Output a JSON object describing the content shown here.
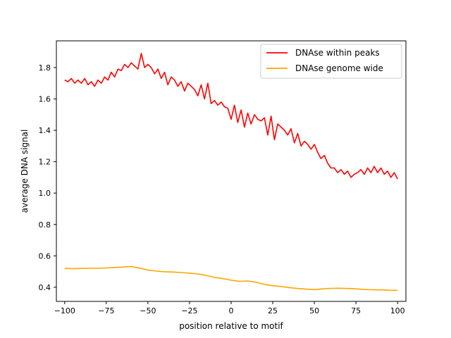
{
  "chart_data": {
    "type": "line",
    "xlabel": "position relative to motif",
    "ylabel": "average DNA signal",
    "xlim": [
      -105,
      105
    ],
    "ylim": [
      0.31,
      1.97
    ],
    "xticks": [
      -100,
      -75,
      -50,
      -25,
      0,
      25,
      50,
      75,
      100
    ],
    "xtick_labels": [
      "−100",
      "−75",
      "−50",
      "−25",
      "0",
      "25",
      "50",
      "75",
      "100"
    ],
    "yticks": [
      0.4,
      0.6,
      0.8,
      1.0,
      1.2,
      1.4,
      1.6,
      1.8
    ],
    "ytick_labels": [
      "0.4",
      "0.6",
      "0.8",
      "1.0",
      "1.2",
      "1.4",
      "1.6",
      "1.8"
    ],
    "legend_position": "top-right",
    "grid": false,
    "series": [
      {
        "name": "DNAse within peaks",
        "color": "#ff0000",
        "x": [
          -100,
          -98,
          -96,
          -94,
          -92,
          -90,
          -88,
          -86,
          -84,
          -82,
          -80,
          -78,
          -76,
          -74,
          -72,
          -70,
          -68,
          -66,
          -64,
          -62,
          -60,
          -58,
          -56,
          -54,
          -52,
          -50,
          -48,
          -46,
          -44,
          -42,
          -40,
          -38,
          -36,
          -34,
          -32,
          -30,
          -28,
          -26,
          -24,
          -22,
          -20,
          -18,
          -16,
          -14,
          -12,
          -10,
          -8,
          -6,
          -4,
          -2,
          0,
          2,
          4,
          6,
          8,
          10,
          12,
          14,
          16,
          18,
          20,
          22,
          24,
          26,
          28,
          30,
          32,
          34,
          36,
          38,
          40,
          42,
          44,
          46,
          48,
          50,
          52,
          54,
          56,
          58,
          60,
          62,
          64,
          66,
          68,
          70,
          72,
          74,
          76,
          78,
          80,
          82,
          84,
          86,
          88,
          90,
          92,
          94,
          96,
          98,
          100
        ],
        "y": [
          1.72,
          1.71,
          1.73,
          1.7,
          1.72,
          1.7,
          1.73,
          1.69,
          1.71,
          1.68,
          1.72,
          1.7,
          1.74,
          1.72,
          1.77,
          1.74,
          1.79,
          1.78,
          1.82,
          1.8,
          1.83,
          1.81,
          1.79,
          1.89,
          1.8,
          1.82,
          1.8,
          1.76,
          1.79,
          1.73,
          1.77,
          1.69,
          1.74,
          1.72,
          1.68,
          1.71,
          1.65,
          1.7,
          1.68,
          1.66,
          1.62,
          1.69,
          1.6,
          1.7,
          1.57,
          1.59,
          1.56,
          1.58,
          1.55,
          1.54,
          1.47,
          1.56,
          1.45,
          1.53,
          1.42,
          1.51,
          1.44,
          1.5,
          1.47,
          1.46,
          1.48,
          1.37,
          1.49,
          1.34,
          1.44,
          1.42,
          1.4,
          1.37,
          1.41,
          1.32,
          1.38,
          1.3,
          1.33,
          1.31,
          1.28,
          1.31,
          1.26,
          1.22,
          1.24,
          1.19,
          1.16,
          1.16,
          1.13,
          1.15,
          1.12,
          1.14,
          1.1,
          1.12,
          1.13,
          1.15,
          1.12,
          1.16,
          1.13,
          1.17,
          1.13,
          1.16,
          1.12,
          1.14,
          1.1,
          1.13,
          1.09
        ],
        "_note": "values read from the plot; noisy red line"
      },
      {
        "name": "DNAse genome wide",
        "color": "#ffa500",
        "x": [
          -100,
          -95,
          -90,
          -85,
          -80,
          -75,
          -70,
          -65,
          -60,
          -55,
          -50,
          -45,
          -40,
          -35,
          -30,
          -25,
          -20,
          -15,
          -10,
          -5,
          0,
          5,
          10,
          15,
          20,
          25,
          30,
          35,
          40,
          45,
          50,
          55,
          60,
          65,
          70,
          75,
          80,
          85,
          90,
          95,
          100
        ],
        "y": [
          0.52,
          0.518,
          0.52,
          0.521,
          0.521,
          0.523,
          0.526,
          0.529,
          0.532,
          0.522,
          0.51,
          0.503,
          0.499,
          0.497,
          0.494,
          0.49,
          0.485,
          0.475,
          0.463,
          0.455,
          0.445,
          0.438,
          0.44,
          0.432,
          0.418,
          0.41,
          0.405,
          0.398,
          0.392,
          0.388,
          0.385,
          0.39,
          0.393,
          0.394,
          0.392,
          0.39,
          0.386,
          0.384,
          0.383,
          0.381,
          0.38
        ]
      }
    ]
  }
}
